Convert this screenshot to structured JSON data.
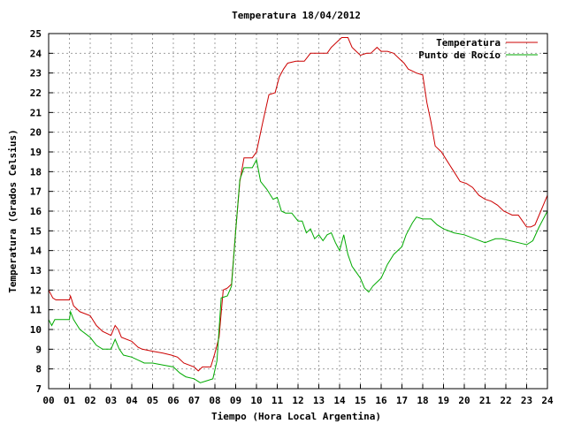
{
  "chart_data": {
    "type": "line",
    "title": "Temperatura 18/04/2012",
    "xlabel": "Tiempo (Hora Local Argentina)",
    "ylabel": "Temperatura (Grados Celsius)",
    "xlim": [
      0,
      24
    ],
    "ylim": [
      7,
      25
    ],
    "x_ticks": [
      "00",
      "01",
      "02",
      "03",
      "04",
      "05",
      "06",
      "07",
      "08",
      "09",
      "10",
      "11",
      "12",
      "13",
      "14",
      "15",
      "16",
      "17",
      "18",
      "19",
      "20",
      "21",
      "22",
      "23",
      "24"
    ],
    "y_ticks": [
      7,
      8,
      9,
      10,
      11,
      12,
      13,
      14,
      15,
      16,
      17,
      18,
      19,
      20,
      21,
      22,
      23,
      24,
      25
    ],
    "grid": true,
    "legend": "top-right",
    "series": [
      {
        "name": "Temperatura",
        "color": "#cc0000",
        "points": [
          [
            0.0,
            12.0
          ],
          [
            0.2,
            11.6
          ],
          [
            0.35,
            11.5
          ],
          [
            0.5,
            11.5
          ],
          [
            1.0,
            11.5
          ],
          [
            1.05,
            11.7
          ],
          [
            1.2,
            11.2
          ],
          [
            1.5,
            10.9
          ],
          [
            2.0,
            10.7
          ],
          [
            2.3,
            10.2
          ],
          [
            2.6,
            9.9
          ],
          [
            3.0,
            9.7
          ],
          [
            3.2,
            10.2
          ],
          [
            3.35,
            10.0
          ],
          [
            3.5,
            9.6
          ],
          [
            4.0,
            9.4
          ],
          [
            4.3,
            9.1
          ],
          [
            4.5,
            9.0
          ],
          [
            5.0,
            8.9
          ],
          [
            5.5,
            8.8
          ],
          [
            5.9,
            8.7
          ],
          [
            6.2,
            8.6
          ],
          [
            6.5,
            8.3
          ],
          [
            7.0,
            8.1
          ],
          [
            7.2,
            7.9
          ],
          [
            7.4,
            8.1
          ],
          [
            7.8,
            8.1
          ],
          [
            8.0,
            8.8
          ],
          [
            8.2,
            9.6
          ],
          [
            8.4,
            12.0
          ],
          [
            8.6,
            12.1
          ],
          [
            8.8,
            12.3
          ],
          [
            9.0,
            15.0
          ],
          [
            9.2,
            17.5
          ],
          [
            9.4,
            18.7
          ],
          [
            9.6,
            18.7
          ],
          [
            9.8,
            18.7
          ],
          [
            10.0,
            19.0
          ],
          [
            10.3,
            20.5
          ],
          [
            10.6,
            21.9
          ],
          [
            10.9,
            22.0
          ],
          [
            11.1,
            22.8
          ],
          [
            11.3,
            23.2
          ],
          [
            11.5,
            23.5
          ],
          [
            11.9,
            23.6
          ],
          [
            12.3,
            23.6
          ],
          [
            12.6,
            24.0
          ],
          [
            13.0,
            24.0
          ],
          [
            13.4,
            24.0
          ],
          [
            13.6,
            24.3
          ],
          [
            13.9,
            24.6
          ],
          [
            14.1,
            24.8
          ],
          [
            14.4,
            24.8
          ],
          [
            14.6,
            24.3
          ],
          [
            14.8,
            24.1
          ],
          [
            15.0,
            23.9
          ],
          [
            15.3,
            24.0
          ],
          [
            15.5,
            24.0
          ],
          [
            15.8,
            24.3
          ],
          [
            16.0,
            24.1
          ],
          [
            16.3,
            24.1
          ],
          [
            16.6,
            24.0
          ],
          [
            16.9,
            23.7
          ],
          [
            17.1,
            23.5
          ],
          [
            17.3,
            23.2
          ],
          [
            17.5,
            23.1
          ],
          [
            17.7,
            23.0
          ],
          [
            18.0,
            22.9
          ],
          [
            18.2,
            21.5
          ],
          [
            18.4,
            20.5
          ],
          [
            18.6,
            19.3
          ],
          [
            18.9,
            19.0
          ],
          [
            19.2,
            18.5
          ],
          [
            19.5,
            18.0
          ],
          [
            19.8,
            17.5
          ],
          [
            20.1,
            17.4
          ],
          [
            20.4,
            17.2
          ],
          [
            20.7,
            16.8
          ],
          [
            21.0,
            16.6
          ],
          [
            21.3,
            16.5
          ],
          [
            21.6,
            16.3
          ],
          [
            21.9,
            16.0
          ],
          [
            22.1,
            15.9
          ],
          [
            22.3,
            15.8
          ],
          [
            22.6,
            15.8
          ],
          [
            22.8,
            15.5
          ],
          [
            23.0,
            15.2
          ],
          [
            23.2,
            15.2
          ],
          [
            23.4,
            15.3
          ],
          [
            23.6,
            15.8
          ],
          [
            23.8,
            16.3
          ],
          [
            24.0,
            16.8
          ]
        ]
      },
      {
        "name": "Punto de Rocío",
        "color": "#00aa00",
        "points": [
          [
            0.0,
            10.5
          ],
          [
            0.15,
            10.2
          ],
          [
            0.3,
            10.5
          ],
          [
            0.6,
            10.5
          ],
          [
            1.0,
            10.5
          ],
          [
            1.05,
            10.9
          ],
          [
            1.2,
            10.5
          ],
          [
            1.5,
            10.0
          ],
          [
            2.0,
            9.6
          ],
          [
            2.3,
            9.2
          ],
          [
            2.6,
            9.0
          ],
          [
            3.0,
            9.0
          ],
          [
            3.2,
            9.5
          ],
          [
            3.4,
            9.0
          ],
          [
            3.6,
            8.7
          ],
          [
            4.0,
            8.6
          ],
          [
            4.4,
            8.4
          ],
          [
            4.6,
            8.3
          ],
          [
            5.0,
            8.3
          ],
          [
            5.5,
            8.2
          ],
          [
            6.0,
            8.1
          ],
          [
            6.3,
            7.8
          ],
          [
            6.6,
            7.6
          ],
          [
            7.0,
            7.5
          ],
          [
            7.3,
            7.3
          ],
          [
            7.6,
            7.4
          ],
          [
            7.9,
            7.5
          ],
          [
            8.1,
            8.4
          ],
          [
            8.3,
            11.6
          ],
          [
            8.6,
            11.7
          ],
          [
            8.8,
            12.2
          ],
          [
            9.0,
            15.0
          ],
          [
            9.2,
            17.6
          ],
          [
            9.4,
            18.2
          ],
          [
            9.6,
            18.2
          ],
          [
            9.8,
            18.2
          ],
          [
            10.0,
            18.6
          ],
          [
            10.2,
            17.5
          ],
          [
            10.5,
            17.1
          ],
          [
            10.8,
            16.6
          ],
          [
            11.0,
            16.7
          ],
          [
            11.2,
            16.0
          ],
          [
            11.4,
            15.9
          ],
          [
            11.7,
            15.9
          ],
          [
            12.0,
            15.5
          ],
          [
            12.2,
            15.5
          ],
          [
            12.4,
            14.9
          ],
          [
            12.6,
            15.1
          ],
          [
            12.8,
            14.6
          ],
          [
            13.0,
            14.8
          ],
          [
            13.2,
            14.5
          ],
          [
            13.4,
            14.8
          ],
          [
            13.6,
            14.9
          ],
          [
            13.8,
            14.4
          ],
          [
            14.0,
            14.0
          ],
          [
            14.2,
            14.8
          ],
          [
            14.4,
            13.8
          ],
          [
            14.6,
            13.2
          ],
          [
            14.8,
            12.9
          ],
          [
            15.0,
            12.6
          ],
          [
            15.2,
            12.1
          ],
          [
            15.4,
            11.9
          ],
          [
            15.6,
            12.2
          ],
          [
            15.8,
            12.4
          ],
          [
            16.0,
            12.6
          ],
          [
            16.3,
            13.3
          ],
          [
            16.6,
            13.8
          ],
          [
            17.0,
            14.2
          ],
          [
            17.2,
            14.8
          ],
          [
            17.5,
            15.4
          ],
          [
            17.7,
            15.7
          ],
          [
            18.0,
            15.6
          ],
          [
            18.4,
            15.6
          ],
          [
            18.7,
            15.3
          ],
          [
            19.0,
            15.1
          ],
          [
            19.5,
            14.9
          ],
          [
            20.0,
            14.8
          ],
          [
            20.5,
            14.6
          ],
          [
            21.0,
            14.4
          ],
          [
            21.5,
            14.6
          ],
          [
            21.8,
            14.6
          ],
          [
            22.2,
            14.5
          ],
          [
            22.6,
            14.4
          ],
          [
            23.0,
            14.3
          ],
          [
            23.3,
            14.5
          ],
          [
            23.6,
            15.2
          ],
          [
            24.0,
            16.0
          ]
        ]
      }
    ]
  }
}
